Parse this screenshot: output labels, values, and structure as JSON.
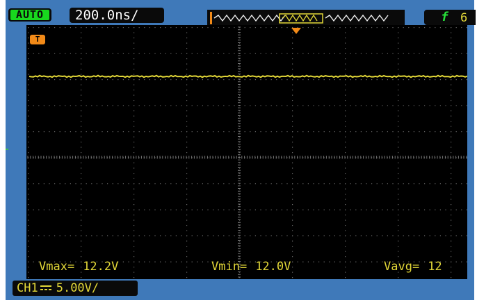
{
  "header": {
    "mode": "AUTO",
    "timebase": "200.0ns/",
    "trigger_slope": "f",
    "trigger_channel": "6"
  },
  "screen": {
    "trigger_marker": "T"
  },
  "measurements": [
    {
      "label": "Vmax=",
      "value": "12.2V"
    },
    {
      "label": "Vmin=",
      "value": "12.0V"
    },
    {
      "label": "Vavg=",
      "value": "12"
    }
  ],
  "channel": {
    "name": "CH1",
    "coupling_icon": "dc-coupling-icon",
    "scale": "5.00V/"
  },
  "colors": {
    "frame": "#3f79b9",
    "trace": "#e3d838",
    "trigger": "#f28a18",
    "mode": "#18d81e"
  }
}
